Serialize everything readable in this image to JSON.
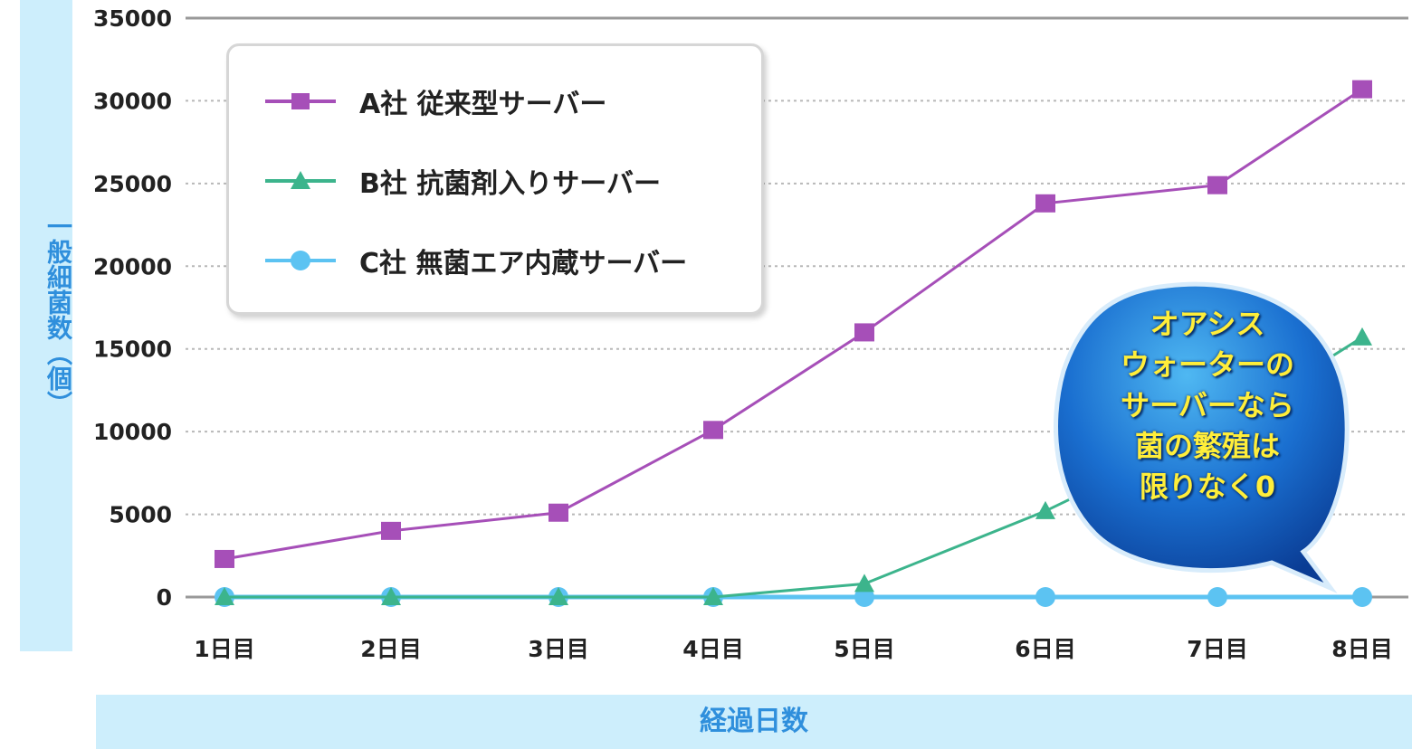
{
  "chart_data": {
    "type": "line",
    "title": "",
    "xlabel": "経過日数",
    "ylabel": "一般細菌数（個）",
    "categories": [
      "1日目",
      "2日目",
      "3日目",
      "4日目",
      "5日目",
      "6日目",
      "7日目",
      "8日目"
    ],
    "ylim": [
      0,
      35000
    ],
    "yticks": [
      0,
      5000,
      10000,
      15000,
      20000,
      25000,
      30000,
      35000
    ],
    "grid": true,
    "legend_position": "top-left",
    "series": [
      {
        "name": "A社 従来型サーバー",
        "color": "#a64fb8",
        "marker": "square",
        "values": [
          2300,
          4000,
          5100,
          10100,
          16000,
          23800,
          24900,
          30700
        ]
      },
      {
        "name": "B社 抗菌剤入りサーバー",
        "color": "#3cb48c",
        "marker": "triangle",
        "values": [
          0,
          0,
          0,
          0,
          800,
          5200,
          10200,
          15700
        ]
      },
      {
        "name": "C社 無菌エア内蔵サーバー",
        "color": "#5cc3f2",
        "marker": "circle",
        "values": [
          0,
          0,
          0,
          0,
          0,
          0,
          0,
          0
        ]
      }
    ],
    "annotation": "オアシス\nウォーターの\nサーバーなら\n菌の繁殖は\n限りなく0"
  }
}
